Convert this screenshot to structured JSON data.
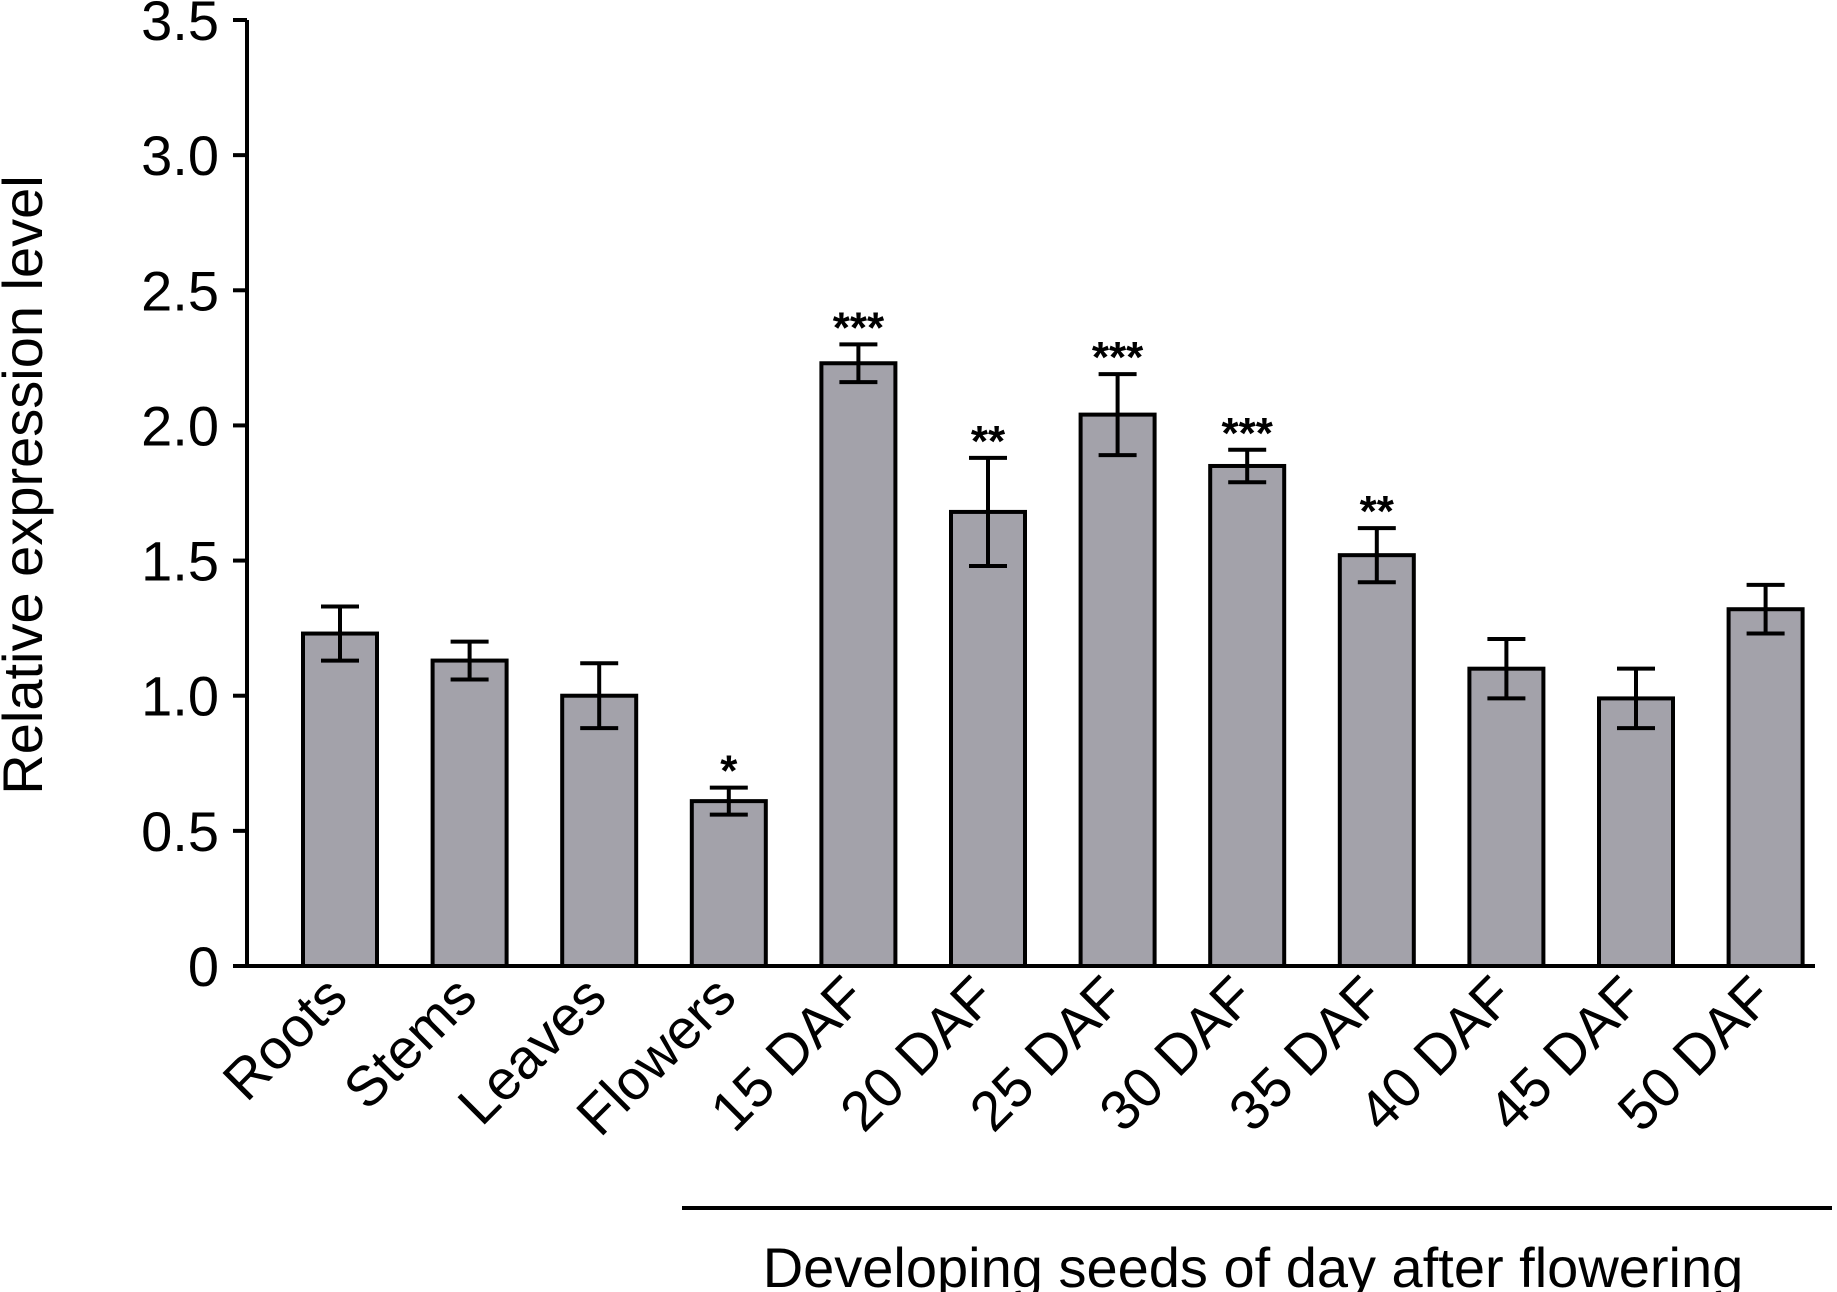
{
  "chart_data": {
    "type": "bar",
    "ylabel": "Relative  expression level",
    "xlabel": "",
    "ylim": [
      0,
      3.5
    ],
    "yticks": [
      0,
      0.5,
      1.0,
      1.5,
      2.0,
      2.5,
      3.0,
      3.5
    ],
    "ytick_labels": [
      "0",
      "0.5",
      "1.0",
      "1.5",
      "2.0",
      "2.5",
      "3.0",
      "3.5"
    ],
    "categories": [
      "Roots",
      "Stems",
      "Leaves",
      "Flowers",
      "15 DAF",
      "20 DAF",
      "25 DAF",
      "30 DAF",
      "35 DAF",
      "40 DAF",
      "45 DAF",
      "50 DAF"
    ],
    "values": [
      1.23,
      1.13,
      1.0,
      0.61,
      2.23,
      1.68,
      2.04,
      1.85,
      1.52,
      1.1,
      0.99,
      1.32
    ],
    "errors": [
      0.1,
      0.07,
      0.12,
      0.05,
      0.07,
      0.2,
      0.15,
      0.06,
      0.1,
      0.11,
      0.11,
      0.09
    ],
    "significance": [
      "",
      "",
      "",
      "*",
      "***",
      "**",
      "***",
      "***",
      "**",
      "",
      "",
      ""
    ],
    "bar_color": "#a3a2aa",
    "group_bracket": {
      "label": "Developing seeds of day after flowering",
      "from_category": "15 DAF",
      "to_category": "50 DAF"
    },
    "grid": false,
    "legend": "none"
  }
}
